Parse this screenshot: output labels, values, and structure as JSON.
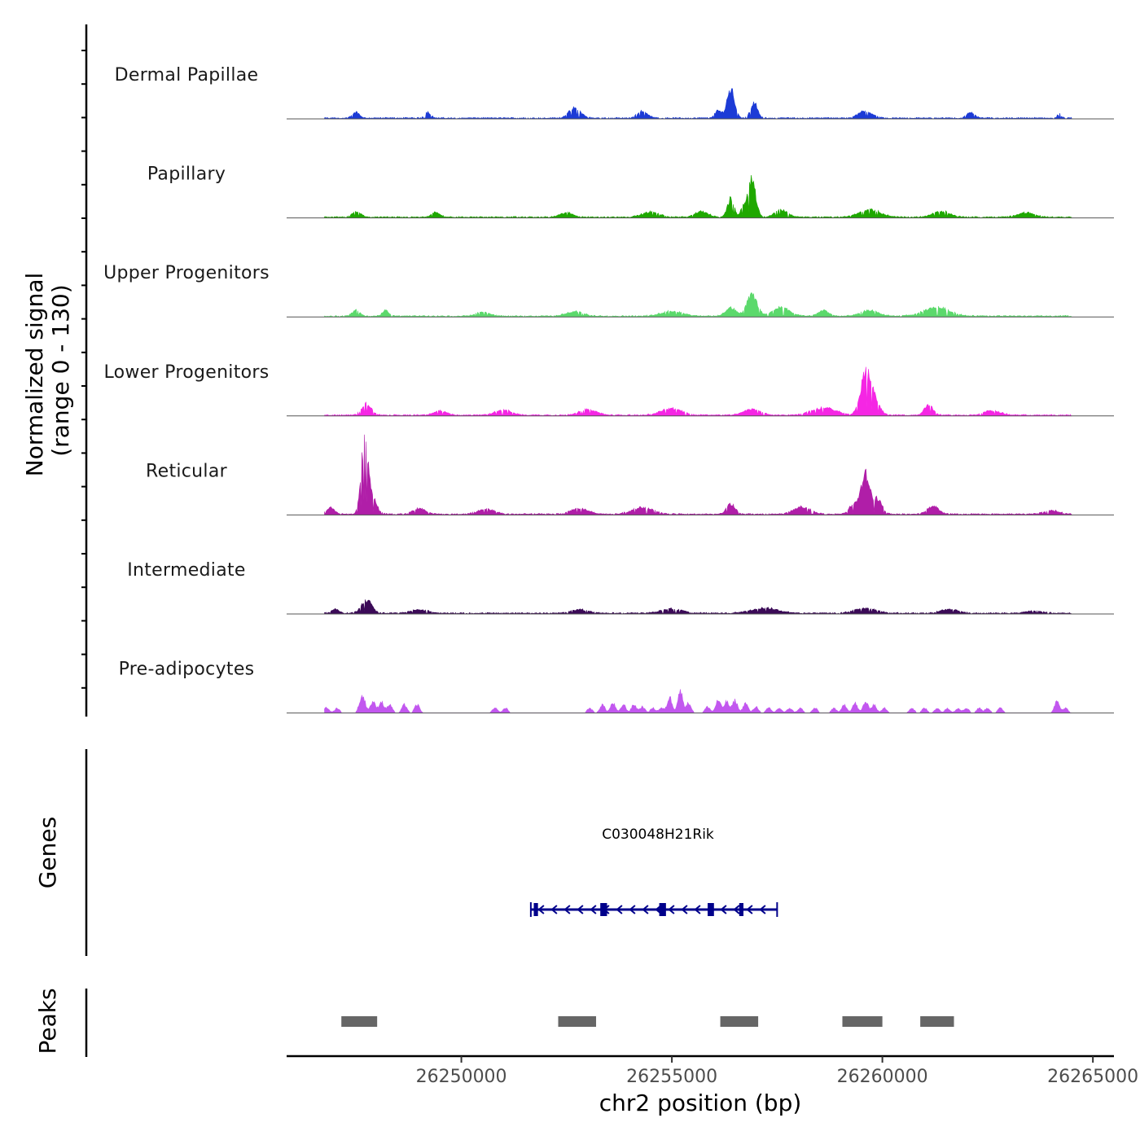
{
  "chart_data": {
    "type": "area",
    "title": "",
    "ylabel_line1": "Normalized signal",
    "ylabel_line2": "(range 0 - 130)",
    "y_range": [
      0,
      130
    ],
    "xlabel": "chr2 position (bp)",
    "x_range": [
      26245850,
      26265500
    ],
    "x_ticks": [
      26250000,
      26255000,
      26260000,
      26265000
    ],
    "x_tick_labels": [
      "26250000",
      "26255000",
      "26260000",
      "26265000"
    ],
    "signal_start": 26246750,
    "signal_end": 26264500,
    "tracks": [
      {
        "name": "Dermal Papillae",
        "color": "#1c3bd6",
        "peaks": [
          [
            26247500,
            8,
            80
          ],
          [
            26249200,
            8,
            70
          ],
          [
            26252700,
            14,
            140
          ],
          [
            26254300,
            10,
            120
          ],
          [
            26256400,
            40,
            90
          ],
          [
            26256950,
            22,
            80
          ],
          [
            26256100,
            10,
            80
          ],
          [
            26259600,
            10,
            160
          ],
          [
            26262100,
            8,
            90
          ],
          [
            26264200,
            6,
            40
          ]
        ]
      },
      {
        "name": "Papillary",
        "color": "#1fa800",
        "peaks": [
          [
            26247500,
            8,
            100
          ],
          [
            26249400,
            7,
            100
          ],
          [
            26252500,
            6,
            150
          ],
          [
            26254500,
            7,
            200
          ],
          [
            26255700,
            8,
            150
          ],
          [
            26256400,
            25,
            80
          ],
          [
            26256700,
            14,
            60
          ],
          [
            26256900,
            53,
            90
          ],
          [
            26257600,
            10,
            150
          ],
          [
            26259700,
            10,
            250
          ],
          [
            26261400,
            8,
            200
          ],
          [
            26263400,
            6,
            200
          ]
        ]
      },
      {
        "name": "Upper Progenitors",
        "color": "#5cd96c",
        "peaks": [
          [
            26247500,
            8,
            90
          ],
          [
            26248200,
            8,
            70
          ],
          [
            26250500,
            6,
            150
          ],
          [
            26252700,
            6,
            200
          ],
          [
            26255000,
            7,
            250
          ],
          [
            26256400,
            12,
            120
          ],
          [
            26256900,
            30,
            120
          ],
          [
            26257600,
            12,
            200
          ],
          [
            26258600,
            8,
            120
          ],
          [
            26259700,
            8,
            200
          ],
          [
            26261300,
            12,
            300
          ]
        ]
      },
      {
        "name": "Lower Progenitors",
        "color": "#f526e4",
        "peaks": [
          [
            26247750,
            16,
            110
          ],
          [
            26249500,
            6,
            150
          ],
          [
            26251000,
            7,
            200
          ],
          [
            26253000,
            8,
            200
          ],
          [
            26255000,
            9,
            250
          ],
          [
            26256900,
            8,
            200
          ],
          [
            26258600,
            10,
            300
          ],
          [
            26259600,
            55,
            120
          ],
          [
            26259800,
            20,
            130
          ],
          [
            26261100,
            14,
            100
          ],
          [
            26262600,
            6,
            200
          ]
        ]
      },
      {
        "name": "Reticular",
        "color": "#b01ea8",
        "peaks": [
          [
            26246900,
            9,
            90
          ],
          [
            26247700,
            95,
            80
          ],
          [
            26247850,
            25,
            120
          ],
          [
            26249000,
            8,
            150
          ],
          [
            26250600,
            7,
            200
          ],
          [
            26252800,
            8,
            200
          ],
          [
            26254300,
            9,
            250
          ],
          [
            26256400,
            14,
            100
          ],
          [
            26258100,
            10,
            200
          ],
          [
            26259600,
            55,
            110
          ],
          [
            26259300,
            12,
            100
          ],
          [
            26259900,
            20,
            100
          ],
          [
            26261200,
            12,
            130
          ],
          [
            26264000,
            5,
            200
          ]
        ]
      },
      {
        "name": "Intermediate",
        "color": "#3b0a57",
        "peaks": [
          [
            26247000,
            6,
            80
          ],
          [
            26247750,
            18,
            120
          ],
          [
            26249000,
            5,
            200
          ],
          [
            26252800,
            5,
            200
          ],
          [
            26255000,
            6,
            250
          ],
          [
            26257200,
            7,
            300
          ],
          [
            26259600,
            7,
            250
          ],
          [
            26261600,
            6,
            200
          ],
          [
            26263600,
            3,
            200
          ]
        ]
      },
      {
        "name": "Pre-adipocytes",
        "color": "#c257ef",
        "peaks": [
          [
            26246800,
            8,
            60
          ],
          [
            26247050,
            7,
            60
          ],
          [
            26247650,
            24,
            70
          ],
          [
            26247900,
            16,
            60
          ],
          [
            26248100,
            16,
            60
          ],
          [
            26248300,
            12,
            60
          ],
          [
            26248650,
            12,
            60
          ],
          [
            26248950,
            12,
            60
          ],
          [
            26250800,
            7,
            60
          ],
          [
            26251050,
            7,
            60
          ],
          [
            26253050,
            7,
            60
          ],
          [
            26253350,
            12,
            60
          ],
          [
            26253600,
            14,
            60
          ],
          [
            26253850,
            12,
            60
          ],
          [
            26254100,
            12,
            60
          ],
          [
            26254300,
            9,
            60
          ],
          [
            26254550,
            7,
            60
          ],
          [
            26254750,
            7,
            60
          ],
          [
            26254950,
            22,
            60
          ],
          [
            26255200,
            31,
            60
          ],
          [
            26255400,
            14,
            60
          ],
          [
            26255850,
            9,
            60
          ],
          [
            26256100,
            18,
            60
          ],
          [
            26256300,
            16,
            60
          ],
          [
            26256500,
            18,
            60
          ],
          [
            26256750,
            14,
            60
          ],
          [
            26257000,
            9,
            60
          ],
          [
            26257300,
            7,
            60
          ],
          [
            26257550,
            7,
            60
          ],
          [
            26257800,
            7,
            60
          ],
          [
            26258050,
            7,
            60
          ],
          [
            26258400,
            7,
            60
          ],
          [
            26258850,
            7,
            60
          ],
          [
            26259100,
            12,
            60
          ],
          [
            26259350,
            14,
            60
          ],
          [
            26259600,
            16,
            60
          ],
          [
            26259800,
            12,
            60
          ],
          [
            26260050,
            7,
            60
          ],
          [
            26260700,
            7,
            60
          ],
          [
            26261000,
            7,
            60
          ],
          [
            26261300,
            7,
            60
          ],
          [
            26261550,
            7,
            60
          ],
          [
            26261800,
            7,
            60
          ],
          [
            26262000,
            7,
            60
          ],
          [
            26262300,
            7,
            60
          ],
          [
            26262500,
            7,
            60
          ],
          [
            26262800,
            7,
            60
          ],
          [
            26264150,
            18,
            60
          ],
          [
            26264350,
            7,
            60
          ]
        ]
      }
    ],
    "genes_label": "Genes",
    "gene": {
      "name": "C030048H21Rik",
      "strand": "-",
      "start": 26251650,
      "end": 26257500,
      "exons": [
        [
          26251720,
          26251820
        ],
        [
          26253300,
          26253460
        ],
        [
          26254700,
          26254860
        ],
        [
          26255850,
          26256000
        ],
        [
          26256600,
          26256700
        ]
      ],
      "color": "#00008b"
    },
    "peaks_label": "Peaks",
    "peak_color": "#666666",
    "peak_regions": [
      [
        26247150,
        26248000
      ],
      [
        26252300,
        26253200
      ],
      [
        26256150,
        26257050
      ],
      [
        26259050,
        26260000
      ],
      [
        26260900,
        26261700
      ]
    ]
  }
}
